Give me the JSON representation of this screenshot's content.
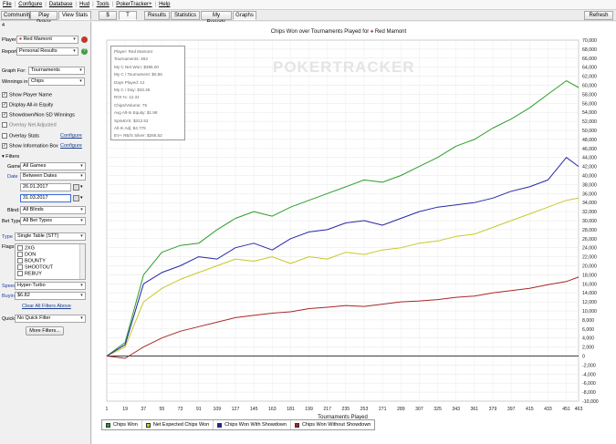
{
  "menubar": {
    "items": [
      "File",
      "Configure",
      "Database",
      "Hud",
      "Tools",
      "PokerTracker+",
      "Help"
    ]
  },
  "toolbar": {
    "tabs": [
      "Community",
      "Play Poker",
      "View Stats",
      "$",
      "T",
      "Results",
      "Statistics",
      "My Reports",
      "Graphs"
    ],
    "refresh_label": "Refresh"
  },
  "filters": {
    "count": "4",
    "player_label": "Player:",
    "player_value": "Red Mamont",
    "report_label": "Report:",
    "report_value": "Personal Results",
    "graph_for_label": "Graph For:",
    "graph_for_value": "Tournaments",
    "winnings_in_label": "Winnings in:",
    "winnings_in_value": "Chips",
    "checks": [
      {
        "label": "Show Player Name",
        "checked": true
      },
      {
        "label": "Display All-in Equity",
        "checked": true
      },
      {
        "label": "Showdown/Non SD Winnings",
        "checked": true
      },
      {
        "label": "Overlay Net Adjusted",
        "checked": false
      }
    ],
    "overlay_stats_label": "Overlay Stats",
    "show_info_box_label": "Show Information Box",
    "configure_label": "Configure",
    "filters_header": "Filters",
    "game_label": "Game:",
    "game_value": "All Games",
    "date_label": "Date",
    "date_value": "Between Dates",
    "date_from": "26.01.2017",
    "date_to": "31.03.2017",
    "blind_label": "Blind:",
    "blind_value": "All Blinds",
    "bet_type_label": "Bet Type:",
    "bet_type_value": "All Bet Types",
    "type_label": "Type",
    "type_value": "Single Table (STT)",
    "flags_label": "Flags",
    "flags": [
      "2XG",
      "DON",
      "BOUNTY",
      "SHOOTOUT",
      "REBUY"
    ],
    "speed_label": "Speed",
    "speed_value": "Hyper-Turbo",
    "buyin_label": "Buyin",
    "buyin_value": "$6.82",
    "clear_filters_label": "Clear All Filters Above",
    "quick_label": "Quick:",
    "quick_value": "No Quick Filter",
    "more_filters_label": "More Filters..."
  },
  "info_box": [
    "Player: Red Mamont",
    "Tournaments: 463",
    "My C Net Won: $385.00",
    "My C / Tournament: $0.86",
    "Days Played: 12",
    "My C / Day: $33.25",
    "ROI %: 12.31",
    "Chips/Volume: 75",
    "Avg All-In Equity: $1.98",
    "Spin&VS: $312.52",
    "All-In Adj: $4.779",
    "EV+ RB/S Silver: $266.52"
  ],
  "watermark": "POKERTRACKER",
  "chart_data": {
    "type": "line",
    "title": "Chips Won over Tournaments Played for",
    "title_player": "Red Mamont",
    "xlabel": "Tournaments Played",
    "ylabel": "",
    "xlim": [
      1,
      463
    ],
    "ylim": [
      -10000,
      70000
    ],
    "x_ticks": [
      1,
      19,
      37,
      55,
      73,
      91,
      109,
      127,
      145,
      163,
      181,
      199,
      217,
      235,
      253,
      271,
      289,
      307,
      325,
      343,
      361,
      379,
      397,
      415,
      433,
      451,
      463
    ],
    "y_ticks": [
      -10000,
      -8000,
      -6000,
      -4000,
      -2000,
      0,
      2000,
      4000,
      6000,
      8000,
      10000,
      12000,
      14000,
      16000,
      18000,
      20000,
      22000,
      24000,
      26000,
      28000,
      30000,
      32000,
      34000,
      36000,
      38000,
      40000,
      42000,
      44000,
      46000,
      48000,
      50000,
      52000,
      54000,
      56000,
      58000,
      60000,
      62000,
      64000,
      66000,
      68000,
      70000
    ],
    "grid": true,
    "legend_position": "bottom-left",
    "x": [
      1,
      19,
      37,
      55,
      73,
      91,
      109,
      127,
      145,
      163,
      181,
      199,
      217,
      235,
      253,
      271,
      289,
      307,
      325,
      343,
      361,
      379,
      397,
      415,
      433,
      451,
      463
    ],
    "series": [
      {
        "name": "Chips Won",
        "color": "#2a9d2a",
        "values": [
          0,
          3000,
          18000,
          23000,
          24500,
          25000,
          28000,
          30500,
          32000,
          31000,
          33000,
          34500,
          36000,
          37500,
          39000,
          38500,
          40000,
          42000,
          44000,
          46500,
          48000,
          50500,
          52500,
          55000,
          58000,
          61000,
          59500
        ]
      },
      {
        "name": "Net Expected Chips Won",
        "color": "#c8c82a",
        "values": [
          0,
          2000,
          12000,
          15000,
          17000,
          18500,
          20000,
          21500,
          21000,
          22000,
          20500,
          22000,
          21500,
          23000,
          22500,
          23500,
          24000,
          25000,
          25500,
          26500,
          27000,
          28500,
          30000,
          31500,
          33000,
          34500,
          35000
        ]
      },
      {
        "name": "Chips Won With Showdown",
        "color": "#2626a8",
        "values": [
          0,
          2500,
          16000,
          18500,
          20000,
          22000,
          21500,
          24000,
          25000,
          23500,
          26000,
          27500,
          28000,
          29500,
          30000,
          29000,
          30500,
          32000,
          33000,
          33500,
          34000,
          35000,
          36500,
          37500,
          39000,
          44000,
          42000
        ]
      },
      {
        "name": "Chips Won Without Showdown",
        "color": "#a82626",
        "values": [
          0,
          -500,
          2000,
          4000,
          5500,
          6500,
          7500,
          8500,
          9000,
          9500,
          9800,
          10500,
          10800,
          11200,
          11000,
          11500,
          12000,
          12200,
          12500,
          13000,
          13300,
          14000,
          14500,
          15000,
          15800,
          16500,
          17500
        ]
      }
    ]
  }
}
